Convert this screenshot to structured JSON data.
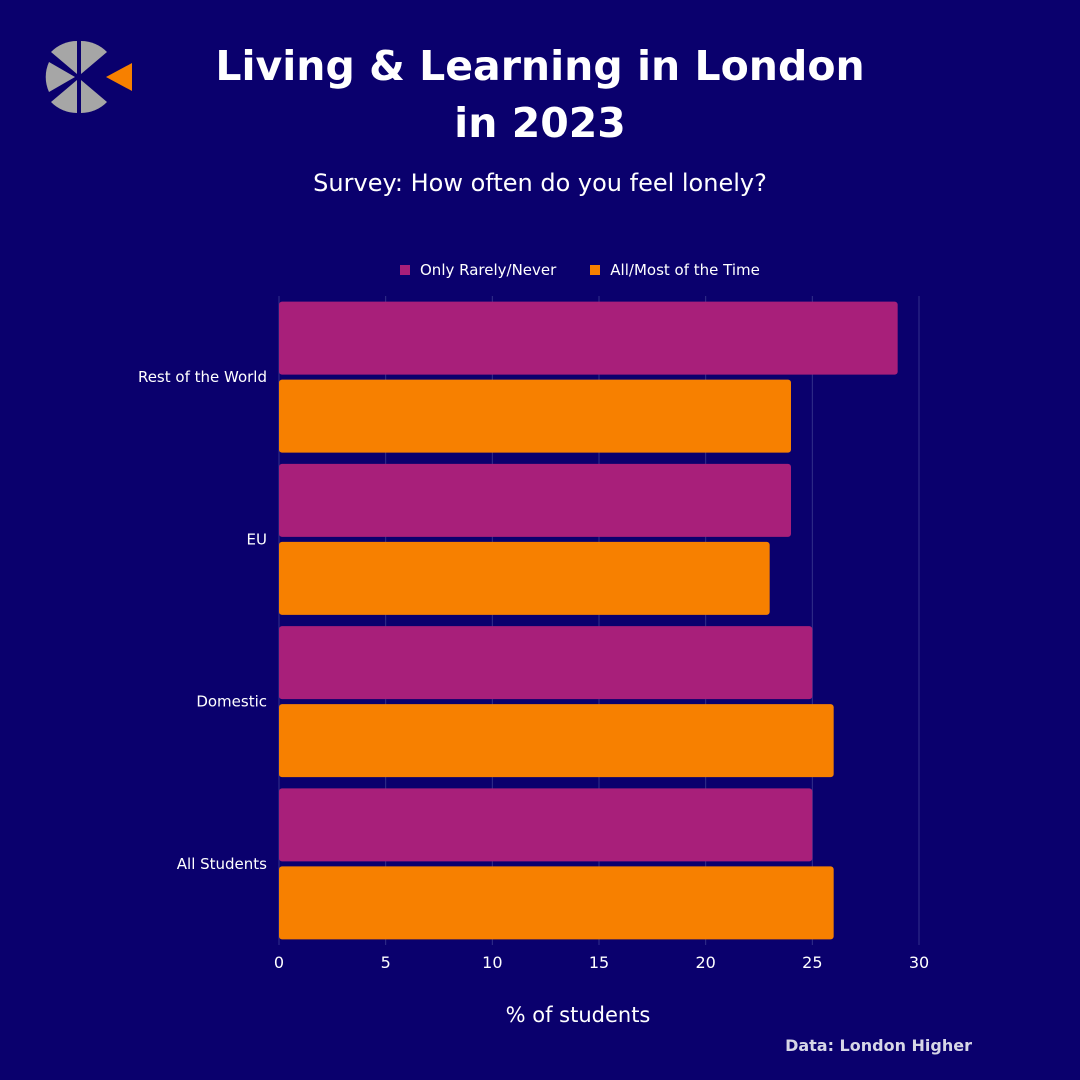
{
  "title": "Living & Learning in London in 2023",
  "subtitle": "Survey: How often do you feel lonely?",
  "source": "Data: London Higher",
  "logo_icon": "segmented-circle-logo",
  "colors": {
    "background": "#0a006d",
    "only_rarely_never": "#a81f7a",
    "all_most_of_the_time": "#f78000",
    "logo_gray": "#a6a6a6",
    "logo_orange": "#f78000",
    "gridline": "#33318a"
  },
  "chart_data": {
    "type": "bar",
    "orientation": "horizontal",
    "title": "Living & Learning in London in 2023",
    "subtitle": "Survey: How often do you feel lonely?",
    "categories": [
      "Rest of the World",
      "EU",
      "Domestic",
      "All Students"
    ],
    "series": [
      {
        "name": "Only Rarely/Never",
        "values": [
          29,
          24,
          25,
          25
        ]
      },
      {
        "name": "All/Most of the Time",
        "values": [
          24,
          23,
          26,
          26
        ]
      }
    ],
    "xlabel": "% of students",
    "ylabel": "",
    "xlim": [
      0,
      30
    ],
    "xticks": [
      0,
      5,
      10,
      15,
      20,
      25,
      30
    ],
    "grid": true,
    "legend_position": "top"
  }
}
